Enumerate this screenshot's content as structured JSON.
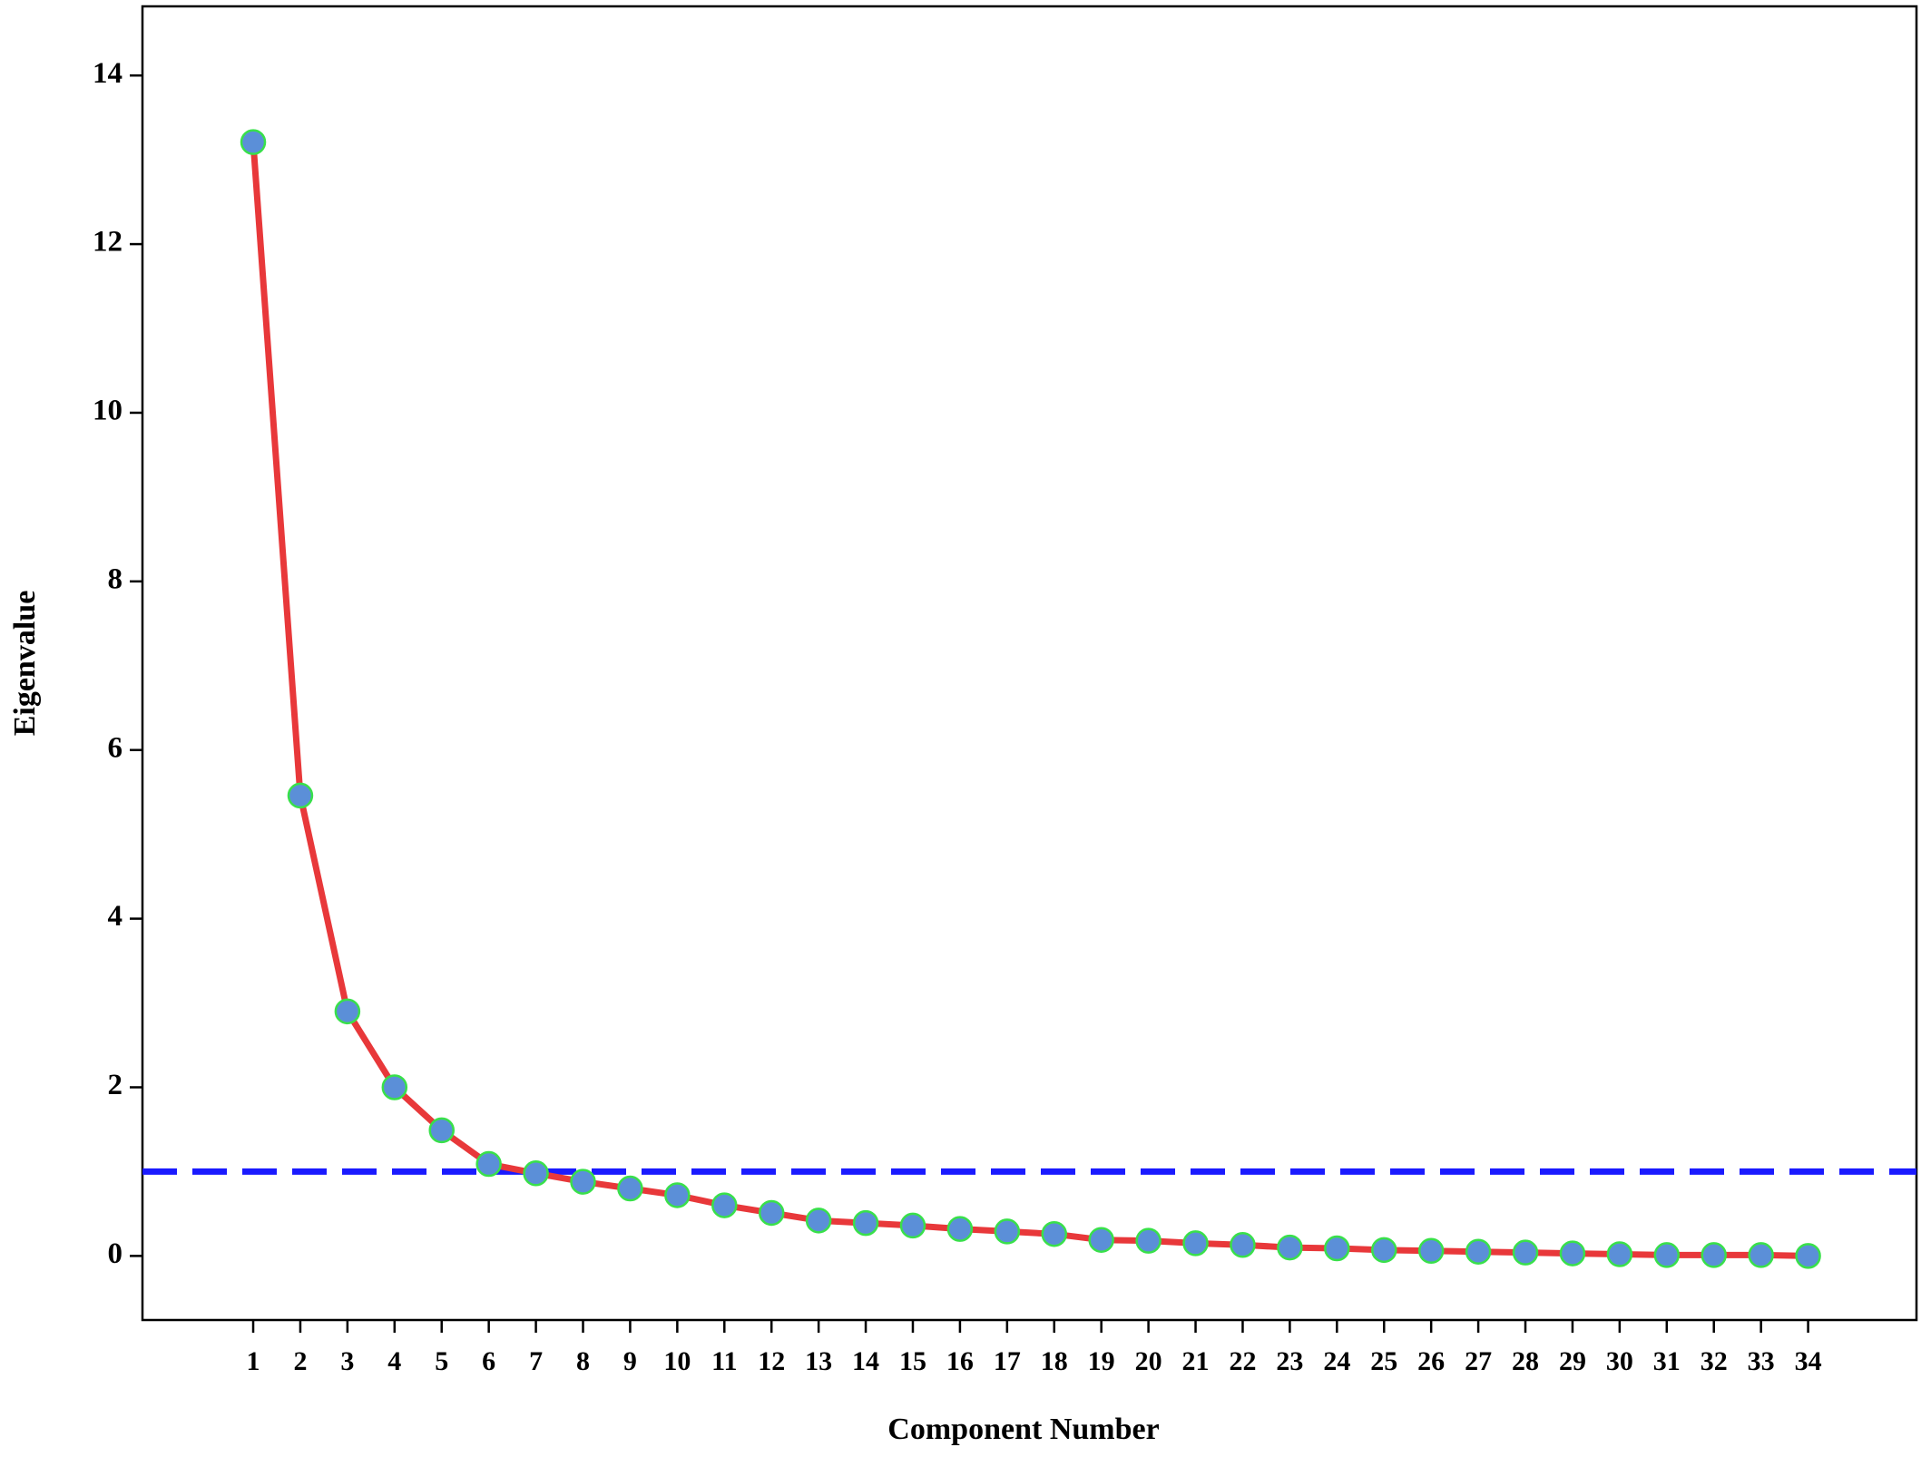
{
  "chart_data": {
    "type": "line",
    "x_label": "Component Number",
    "y_label": "Eigenvalue",
    "x": [
      1,
      2,
      3,
      4,
      5,
      6,
      7,
      8,
      9,
      10,
      11,
      12,
      13,
      14,
      15,
      16,
      17,
      18,
      19,
      20,
      21,
      22,
      23,
      24,
      25,
      26,
      27,
      28,
      29,
      30,
      31,
      32,
      33,
      34
    ],
    "series": [
      {
        "color": "#e8383a",
        "marker_color": "#5b8fd8",
        "marker_edge": "#39e04a",
        "values": [
          13.21,
          5.46,
          2.9,
          2.0,
          1.49,
          1.09,
          0.98,
          0.88,
          0.8,
          0.72,
          0.6,
          0.51,
          0.42,
          0.39,
          0.36,
          0.32,
          0.29,
          0.26,
          0.19,
          0.18,
          0.15,
          0.13,
          0.1,
          0.09,
          0.07,
          0.06,
          0.05,
          0.04,
          0.03,
          0.02,
          0.01,
          0.01,
          0.01,
          0
        ]
      }
    ],
    "reference_line": {
      "y": 1,
      "color": "#1a1aff"
    },
    "xlim": [
      -1.35,
      36.3
    ],
    "ylim": [
      -0.76,
      14.82
    ],
    "xticks": [
      1,
      2,
      3,
      4,
      5,
      6,
      7,
      8,
      9,
      10,
      11,
      12,
      13,
      14,
      15,
      16,
      17,
      18,
      19,
      20,
      21,
      22,
      23,
      24,
      25,
      26,
      27,
      28,
      29,
      30,
      31,
      32,
      33,
      34
    ],
    "yticks": [
      0,
      2,
      4,
      6,
      8,
      10,
      12,
      14
    ]
  }
}
